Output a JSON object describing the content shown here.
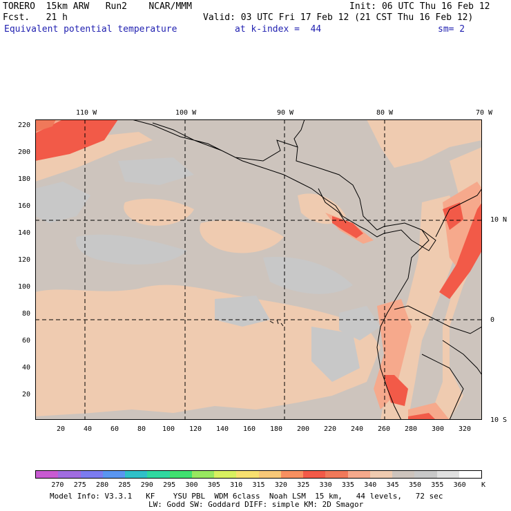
{
  "header": {
    "line1_left": "TORERO  15km ARW   Run2    NCAR/MMM",
    "line1_right": "Init: 06 UTC Thu 16 Feb 12",
    "line2_left": "Fcst.   21 h",
    "line2_right": "Valid: 03 UTC Fri 17 Feb 12 (21 CST Thu 16 Feb 12)",
    "line3_left": "Equivalent potential temperature",
    "line3_mid": "at k-index =  44",
    "line3_right": "sm= 2"
  },
  "map": {
    "top_labels": [
      "110 W",
      "100 W",
      "90 W",
      "80 W",
      "70 W"
    ],
    "right_labels": [
      "10 N",
      "0",
      "10 S"
    ],
    "left_ticks": [
      "220",
      "200",
      "180",
      "160",
      "140",
      "120",
      "100",
      "80",
      "60",
      "40",
      "20"
    ],
    "bottom_ticks": [
      "20",
      "40",
      "60",
      "80",
      "100",
      "120",
      "140",
      "160",
      "180",
      "200",
      "220",
      "240",
      "260",
      "280",
      "300",
      "320"
    ],
    "background_color": "#c8c8c8",
    "field_colors": {
      "low": "#cdc4bd",
      "mid": "#efcbb0",
      "high": "#f6a98c",
      "peak": "#f25a48",
      "max": "#f0795a"
    }
  },
  "colorbar": {
    "unit": "K",
    "labels": [
      "270",
      "275",
      "280",
      "285",
      "290",
      "295",
      "300",
      "305",
      "310",
      "315",
      "320",
      "325",
      "330",
      "335",
      "340",
      "345",
      "350",
      "355",
      "360"
    ],
    "colors": [
      "#c85ad2",
      "#a06ce0",
      "#7c7cf0",
      "#5a96f0",
      "#30c0c8",
      "#30d8a0",
      "#40e070",
      "#98e860",
      "#d8f060",
      "#f8e070",
      "#f8c878",
      "#f89060",
      "#f25a48",
      "#f0795a",
      "#f6a98c",
      "#efcbb0",
      "#cdc4bd",
      "#c8c8c8",
      "#e0e0e0",
      "#ffffff"
    ]
  },
  "footer": {
    "line1": "Model Info: V3.3.1   KF    YSU PBL  WDM 6class  Noah LSM  15 km,   44 levels,   72 sec",
    "line2": "LW: Godd SW: Goddard DIFF: simple KM: 2D Smagor"
  }
}
